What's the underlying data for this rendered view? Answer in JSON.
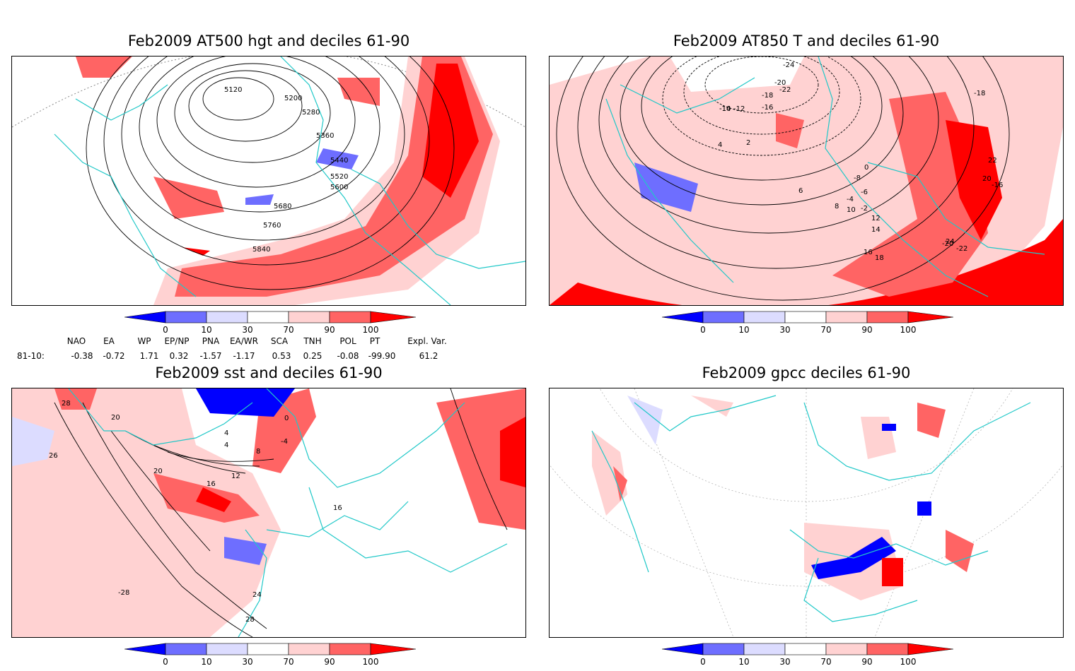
{
  "panels": [
    {
      "title": "Feb2009 AT500 hgt and deciles 61-90",
      "contour_labels": [
        "5120",
        "5200",
        "5280",
        "5360",
        "5440",
        "5520",
        "5600",
        "5680",
        "5760",
        "5840"
      ]
    },
    {
      "title": "Feb2009 AT850 T and deciles 61-90",
      "contour_labels": [
        "-24",
        "-22",
        "-20",
        "-18",
        "-16",
        "-14",
        "-12",
        "-10",
        "-8",
        "-6",
        "-4",
        "-2",
        "0",
        "2",
        "4",
        "6",
        "8",
        "10",
        "12",
        "14",
        "16",
        "18",
        "20",
        "22",
        "24",
        "-16",
        "-18",
        "-20",
        "-22"
      ]
    },
    {
      "title": "Feb2009 sst and deciles 61-90",
      "contour_labels": [
        "28",
        "20",
        "26",
        "0",
        "4",
        "8",
        "12",
        "16",
        "20",
        "24",
        "28",
        "-28",
        "16",
        "-4",
        "4"
      ]
    },
    {
      "title": "Feb2009 gpcc deciles 61-90",
      "contour_labels": []
    }
  ],
  "colorbar": {
    "tick_labels": [
      "0",
      "10",
      "30",
      "70",
      "90",
      "100"
    ],
    "colors": [
      "#0000ff",
      "#6e6eff",
      "#dcdcff",
      "#ffffff",
      "#ffd2d2",
      "#ff6464",
      "#ff0000"
    ]
  },
  "indices": {
    "headers": [
      "NAO",
      "EA",
      "WP",
      "EP/NP",
      "PNA",
      "EA/WR",
      "SCA",
      "TNH",
      "POL",
      "PT",
      "Expl. Var."
    ],
    "row_label": "81-10:",
    "values": [
      "-0.38",
      "-0.72",
      "1.71",
      "0.32",
      "-1.57",
      "-1.17",
      "0.53",
      "0.25",
      "-0.08",
      "-99.90",
      "61.2"
    ]
  },
  "map_colors": {
    "coast": "#20c8c8",
    "contour": "#000000",
    "grid": "#aaaaaa"
  }
}
